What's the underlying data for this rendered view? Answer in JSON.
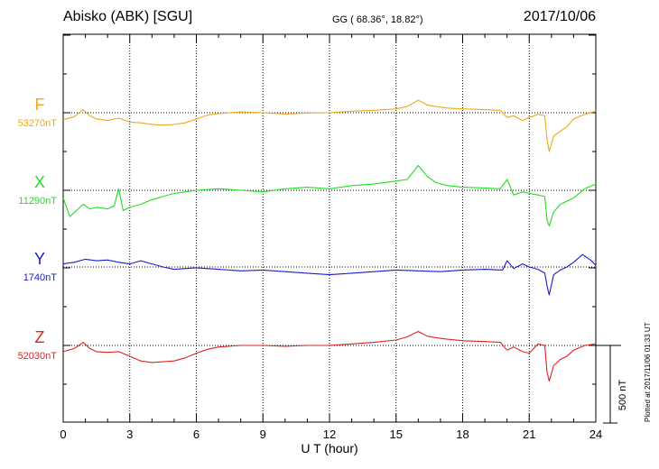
{
  "header": {
    "station": "Abisko (ABK)  [SGU]",
    "coords": "GG ( 68.36°,  18.82°)",
    "date": "2017/10/06"
  },
  "plotted_note": "Plotted at 2017/11/06 01:33 UT",
  "chart_data": {
    "type": "line",
    "title": "Abisko (ABK)  [SGU]",
    "xlabel": "U T (hour)",
    "xlim": [
      0,
      24
    ],
    "x_ticks": [
      0,
      3,
      6,
      9,
      12,
      15,
      18,
      21,
      24
    ],
    "y_unit": "nT",
    "y_range_per_division_nT": 500,
    "scale_bar_label": "500 nT",
    "grid": true,
    "series": [
      {
        "name": "F",
        "baseline_label": "53270nT",
        "baseline_nT": 53270,
        "color": "#f0a818",
        "x": [
          0,
          0.5,
          0.9,
          1.2,
          1.5,
          2,
          2.5,
          3,
          3.5,
          4,
          4.5,
          5,
          5.5,
          6,
          6.5,
          7,
          8,
          9,
          10,
          11,
          12,
          13,
          14,
          15,
          15.5,
          16,
          16.4,
          16.8,
          17.3,
          18,
          19,
          19.7,
          20,
          20.3,
          20.7,
          21,
          21.4,
          21.7,
          21.8,
          21.9,
          22.1,
          22.4,
          22.7,
          23,
          23.5,
          24
        ],
        "values": [
          53225,
          53245,
          53290,
          53250,
          53230,
          53220,
          53235,
          53210,
          53205,
          53195,
          53190,
          53195,
          53205,
          53230,
          53255,
          53265,
          53275,
          53270,
          53262,
          53268,
          53270,
          53280,
          53285,
          53295,
          53310,
          53350,
          53320,
          53310,
          53300,
          53295,
          53290,
          53285,
          53240,
          53250,
          53220,
          53240,
          53260,
          53250,
          53100,
          53020,
          53120,
          53150,
          53180,
          53230,
          53260,
          53280
        ]
      },
      {
        "name": "X",
        "baseline_label": "11290nT",
        "baseline_nT": 11290,
        "color": "#22dd22",
        "x": [
          0,
          0.3,
          0.6,
          0.9,
          1.2,
          1.5,
          2,
          2.3,
          2.5,
          2.7,
          3,
          3.5,
          4,
          4.5,
          5,
          5.5,
          6,
          7,
          8,
          9,
          10,
          11,
          12,
          13,
          14,
          15,
          15.5,
          16,
          16.4,
          16.8,
          17.3,
          18,
          19,
          19.7,
          20,
          20.3,
          20.7,
          21,
          21.4,
          21.7,
          21.8,
          21.9,
          22.1,
          22.4,
          22.7,
          23,
          23.5,
          24
        ],
        "values": [
          11240,
          11120,
          11160,
          11200,
          11170,
          11180,
          11170,
          11190,
          11300,
          11160,
          11180,
          11200,
          11230,
          11250,
          11270,
          11280,
          11290,
          11300,
          11290,
          11280,
          11300,
          11310,
          11300,
          11320,
          11330,
          11350,
          11360,
          11450,
          11380,
          11340,
          11320,
          11310,
          11305,
          11300,
          11360,
          11260,
          11280,
          11270,
          11260,
          11250,
          11100,
          11060,
          11150,
          11200,
          11220,
          11240,
          11300,
          11330
        ]
      },
      {
        "name": "Y",
        "baseline_label": "1740nT",
        "baseline_nT": 1740,
        "color": "#1a1acc",
        "x": [
          0,
          0.5,
          1,
          1.5,
          2,
          2.5,
          3,
          3.5,
          4,
          4.5,
          5,
          6,
          7,
          8,
          9,
          10,
          11,
          12,
          13,
          14,
          15,
          16,
          17,
          18,
          19,
          19.8,
          20,
          20.3,
          20.7,
          21,
          21.4,
          21.7,
          21.8,
          21.9,
          22.1,
          22.4,
          22.7,
          23,
          23.4,
          23.8,
          24
        ],
        "values": [
          1760,
          1770,
          1790,
          1780,
          1785,
          1770,
          1760,
          1780,
          1760,
          1740,
          1725,
          1735,
          1725,
          1715,
          1720,
          1710,
          1700,
          1690,
          1700,
          1710,
          1720,
          1715,
          1710,
          1720,
          1725,
          1720,
          1780,
          1730,
          1760,
          1740,
          1725,
          1700,
          1620,
          1560,
          1690,
          1720,
          1740,
          1770,
          1820,
          1780,
          1750
        ]
      },
      {
        "name": "Z",
        "baseline_label": "52030nT",
        "baseline_nT": 52030,
        "color": "#dd2222",
        "x": [
          0,
          0.5,
          0.9,
          1.2,
          1.5,
          2,
          2.5,
          3,
          3.5,
          4,
          4.5,
          5,
          5.5,
          6,
          6.5,
          7,
          8,
          9,
          10,
          11,
          12,
          13,
          14,
          15,
          15.5,
          16,
          16.4,
          16.8,
          17.3,
          18,
          19,
          19.7,
          20,
          20.3,
          20.7,
          21,
          21.4,
          21.7,
          21.8,
          21.9,
          22.1,
          22.4,
          22.7,
          23,
          23.5,
          24
        ],
        "values": [
          51990,
          52010,
          52050,
          52010,
          51990,
          51985,
          51990,
          51960,
          51930,
          51920,
          51925,
          51930,
          51950,
          51980,
          52005,
          52020,
          52030,
          52030,
          52025,
          52030,
          52030,
          52040,
          52050,
          52065,
          52085,
          52120,
          52090,
          52080,
          52070,
          52060,
          52055,
          52050,
          52000,
          52020,
          51990,
          51980,
          52040,
          52030,
          51860,
          51800,
          51900,
          51940,
          51960,
          52000,
          52030,
          52040
        ]
      }
    ]
  }
}
